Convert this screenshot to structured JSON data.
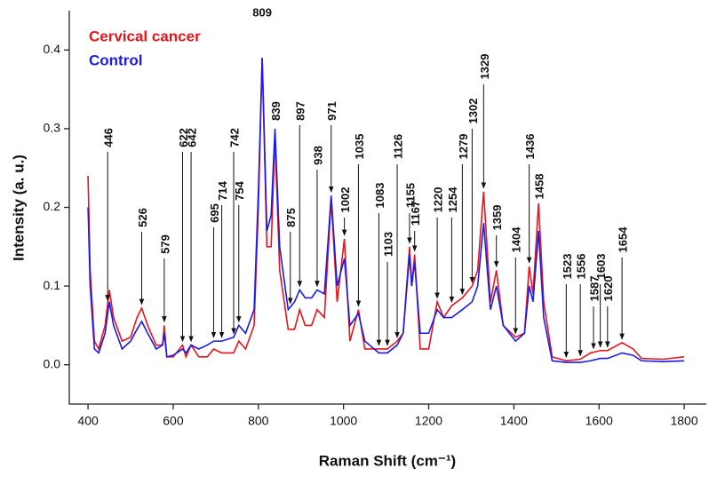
{
  "chart_data": {
    "type": "line",
    "x_label": "Raman Shift (cm⁻¹)",
    "y_label": "Intensity (a. u.)",
    "x": [
      400,
      405,
      415,
      425,
      440,
      450,
      460,
      480,
      500,
      515,
      526,
      540,
      560,
      575,
      579,
      585,
      600,
      622,
      630,
      642,
      660,
      680,
      695,
      714,
      742,
      754,
      770,
      790,
      800,
      809,
      820,
      830,
      839,
      850,
      870,
      885,
      897,
      910,
      925,
      938,
      955,
      971,
      985,
      1002,
      1015,
      1035,
      1050,
      1083,
      1103,
      1126,
      1140,
      1155,
      1160,
      1167,
      1180,
      1200,
      1220,
      1235,
      1254,
      1279,
      1302,
      1315,
      1329,
      1345,
      1359,
      1375,
      1404,
      1425,
      1436,
      1445,
      1458,
      1470,
      1490,
      1523,
      1556,
      1580,
      1603,
      1620,
      1654,
      1680,
      1700,
      1750,
      1800
    ],
    "series": [
      {
        "name": "Cervical cancer",
        "color": "#e8141c",
        "values": [
          0.24,
          0.12,
          0.03,
          0.02,
          0.05,
          0.095,
          0.06,
          0.03,
          0.035,
          0.06,
          0.072,
          0.05,
          0.025,
          0.025,
          0.05,
          0.01,
          0.01,
          0.025,
          0.01,
          0.025,
          0.01,
          0.01,
          0.02,
          0.015,
          0.015,
          0.03,
          0.02,
          0.05,
          0.2,
          0.39,
          0.15,
          0.15,
          0.29,
          0.12,
          0.045,
          0.045,
          0.07,
          0.05,
          0.05,
          0.07,
          0.06,
          0.21,
          0.08,
          0.16,
          0.03,
          0.07,
          0.02,
          0.02,
          0.02,
          0.03,
          0.04,
          0.15,
          0.1,
          0.14,
          0.02,
          0.02,
          0.08,
          0.06,
          0.075,
          0.085,
          0.1,
          0.12,
          0.22,
          0.08,
          0.12,
          0.05,
          0.035,
          0.04,
          0.125,
          0.09,
          0.205,
          0.08,
          0.01,
          0.005,
          0.007,
          0.015,
          0.018,
          0.018,
          0.028,
          0.02,
          0.008,
          0.007,
          0.01
        ]
      },
      {
        "name": "Control",
        "color": "#1a1aee",
        "values": [
          0.2,
          0.1,
          0.02,
          0.015,
          0.04,
          0.08,
          0.05,
          0.02,
          0.03,
          0.045,
          0.055,
          0.04,
          0.02,
          0.025,
          0.04,
          0.01,
          0.012,
          0.02,
          0.015,
          0.025,
          0.02,
          0.025,
          0.03,
          0.03,
          0.035,
          0.05,
          0.04,
          0.07,
          0.22,
          0.39,
          0.17,
          0.19,
          0.3,
          0.15,
          0.07,
          0.08,
          0.095,
          0.085,
          0.085,
          0.095,
          0.09,
          0.215,
          0.1,
          0.135,
          0.05,
          0.065,
          0.03,
          0.015,
          0.015,
          0.025,
          0.04,
          0.14,
          0.1,
          0.13,
          0.04,
          0.04,
          0.07,
          0.06,
          0.06,
          0.07,
          0.08,
          0.1,
          0.18,
          0.07,
          0.1,
          0.05,
          0.03,
          0.04,
          0.1,
          0.08,
          0.17,
          0.06,
          0.005,
          0.003,
          0.003,
          0.005,
          0.008,
          0.008,
          0.015,
          0.012,
          0.005,
          0.004,
          0.005
        ]
      }
    ],
    "peak_labels": [
      446,
      526,
      579,
      622,
      642,
      695,
      714,
      742,
      754,
      809,
      839,
      875,
      897,
      938,
      971,
      1002,
      1035,
      1083,
      1103,
      1126,
      1155,
      1167,
      1220,
      1254,
      1279,
      1302,
      1329,
      1359,
      1404,
      1436,
      1458,
      1523,
      1556,
      1587,
      1603,
      1620,
      1654
    ],
    "xlim": [
      356,
      1852
    ],
    "xticks": [
      400,
      600,
      800,
      1000,
      1200,
      1400,
      1600,
      1800
    ],
    "ylim": [
      -0.05,
      0.45
    ],
    "yticks": [
      {
        "value": 0,
        "label": "0.0"
      },
      0.1,
      0.2,
      0.3,
      0.4
    ],
    "grid": false,
    "legend": "upper left"
  }
}
